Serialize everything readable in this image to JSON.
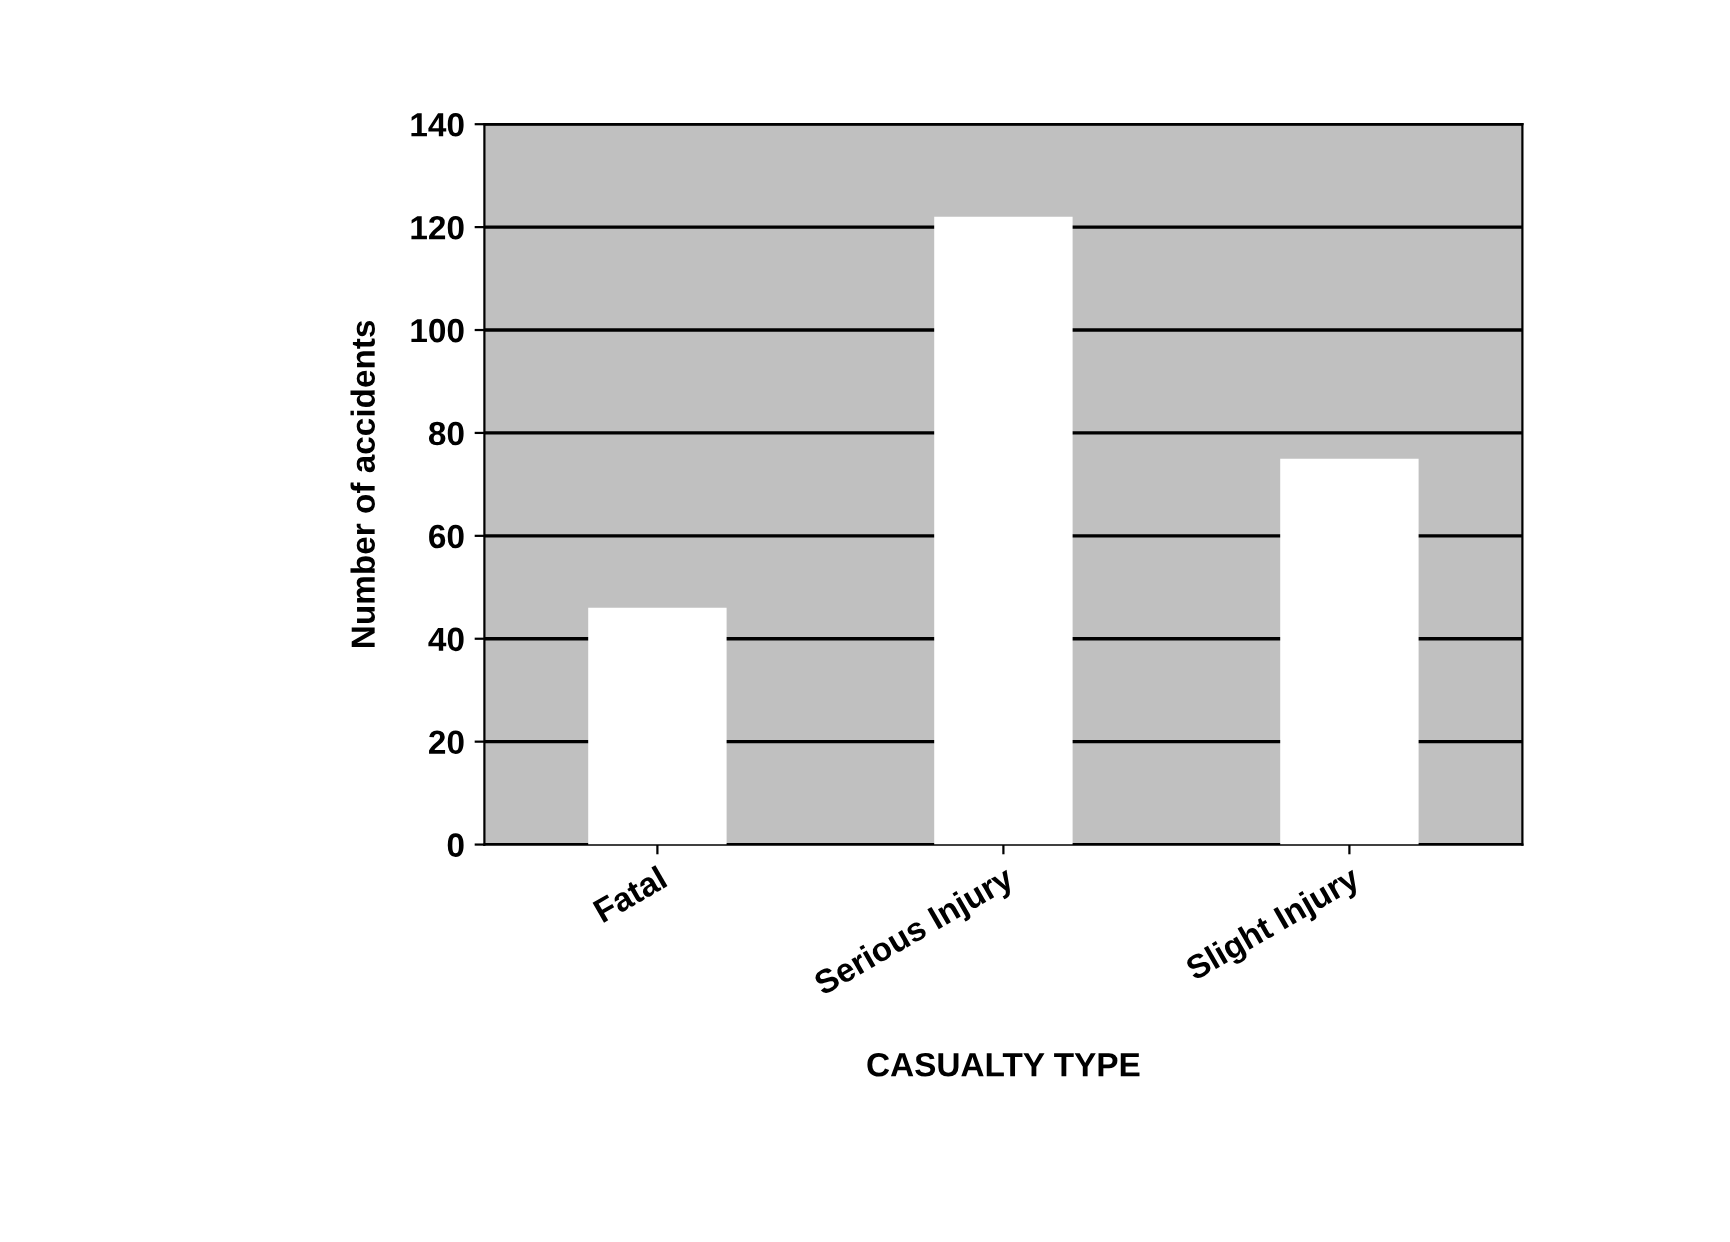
{
  "chart_data": {
    "type": "bar",
    "xlabel": "CASUALTY TYPE",
    "ylabel": "Number of accidents",
    "categories": [
      "Fatal",
      "Serious Injury",
      "Slight Injury"
    ],
    "values": [
      46,
      122,
      75
    ],
    "color": "#ffffff",
    "ylim": [
      0,
      140
    ],
    "yticks": [
      0,
      20,
      40,
      60,
      80,
      100,
      120,
      140
    ],
    "grid": "y"
  }
}
